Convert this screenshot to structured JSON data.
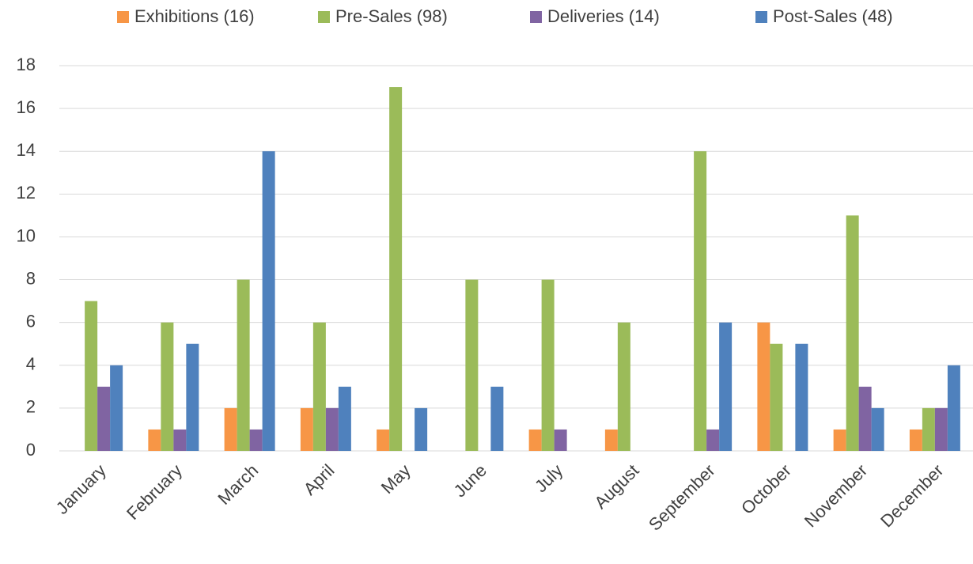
{
  "chart_data": {
    "type": "bar",
    "categories": [
      "January",
      "February",
      "March",
      "April",
      "May",
      "June",
      "July",
      "August",
      "September",
      "October",
      "November",
      "December"
    ],
    "series": [
      {
        "name": "Exhibitions (16)",
        "color": "#f79646",
        "values": [
          0,
          1,
          2,
          2,
          1,
          0,
          1,
          1,
          0,
          6,
          1,
          1
        ]
      },
      {
        "name": "Pre-Sales (98)",
        "color": "#9bbb59",
        "values": [
          7,
          6,
          8,
          6,
          17,
          8,
          8,
          6,
          14,
          5,
          11,
          2
        ]
      },
      {
        "name": "Deliveries (14)",
        "color": "#8064a2",
        "values": [
          3,
          1,
          1,
          2,
          0,
          0,
          1,
          0,
          1,
          0,
          3,
          2
        ]
      },
      {
        "name": "Post-Sales (48)",
        "color": "#4f81bd",
        "values": [
          4,
          5,
          14,
          3,
          2,
          3,
          0,
          0,
          6,
          5,
          2,
          4
        ]
      }
    ],
    "ylim": [
      0,
      18
    ],
    "yticks": [
      0,
      2,
      4,
      6,
      8,
      10,
      12,
      14,
      16,
      18
    ],
    "grid": true,
    "legend": "top"
  }
}
